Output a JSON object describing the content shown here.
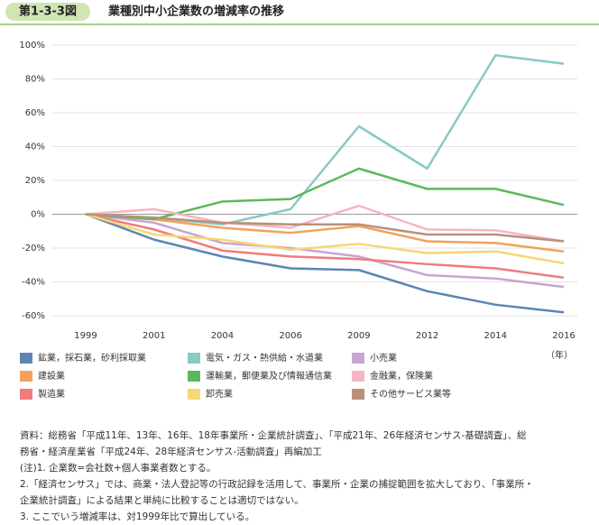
{
  "figure_label": "第1-3-3図",
  "chart_data": {
    "type": "line",
    "title": "業種別中小企業数の増減率の推移",
    "categories": [
      "1999",
      "2001",
      "2004",
      "2006",
      "2009",
      "2012",
      "2014",
      "2016"
    ],
    "x_unit": "（年）",
    "ylim": [
      -60,
      100
    ],
    "yticks": [
      {
        "value": -60,
        "label": "-60%"
      },
      {
        "value": -40,
        "label": "-40%"
      },
      {
        "value": -20,
        "label": "-20%"
      },
      {
        "value": 0,
        "label": "0%"
      },
      {
        "value": 20,
        "label": "20%"
      },
      {
        "value": 40,
        "label": "40%"
      },
      {
        "value": 60,
        "label": "60%"
      },
      {
        "value": 80,
        "label": "80%"
      },
      {
        "value": 100,
        "label": "100%"
      }
    ],
    "grid": true,
    "series": [
      {
        "name": "鉱業，採石業，砂利採取業",
        "color": "#5b86b3",
        "values": [
          0,
          -15,
          -25,
          -32,
          -33,
          -45.5,
          -53.5,
          -58
        ]
      },
      {
        "name": "電気・ガス・熱供給・水道業",
        "color": "#86cbc5",
        "values": [
          0,
          -2,
          -6,
          3,
          52,
          27,
          94,
          89
        ]
      },
      {
        "name": "小売業",
        "color": "#c8a5d2",
        "values": [
          0,
          -5,
          -17,
          -20,
          -25,
          -36,
          -38,
          -43
        ]
      },
      {
        "name": "建設業",
        "color": "#f2a25c",
        "values": [
          0,
          -3,
          -8,
          -11,
          -7,
          -16,
          -17,
          -22
        ]
      },
      {
        "name": "運輸業，郵便業及び情報通信業",
        "color": "#5cb85c",
        "values": [
          0,
          -3,
          7.5,
          9,
          27,
          15,
          15,
          5.5
        ]
      },
      {
        "name": "金融業，保険業",
        "color": "#f4b6c2",
        "values": [
          0,
          3,
          -5,
          -8,
          5,
          -9,
          -9.5,
          -16
        ]
      },
      {
        "name": "製造業",
        "color": "#ef7b7b",
        "values": [
          0,
          -9,
          -21.5,
          -25,
          -26.5,
          -29.5,
          -32,
          -37.5
        ]
      },
      {
        "name": "卸売業",
        "color": "#f7d774",
        "values": [
          0,
          -12,
          -15,
          -21,
          -17.5,
          -23,
          -22,
          -29
        ]
      },
      {
        "name": "その他サービス業等",
        "color": "#b9917a",
        "values": [
          0,
          -2,
          -5,
          -6,
          -6,
          -12,
          -12,
          -16
        ]
      }
    ]
  },
  "notes": [
    "資料：総務省「平成11年、13年、16年、18年事業所・企業統計調査」、「平成21年、26年経済センサス‐基礎調査」、総",
    "務省・経済産業省「平成24年、28年経済センサス‐活動調査」再編加工",
    "(注)1. 企業数=会社数+個人事業者数とする。",
    "2.「経済センサス」では、商業・法人登記等の行政記録を活用して、事業所・企業の捕捉範囲を拡大しており、「事業所・",
    "企業統計調査」による結果と単純に比較することは適切ではない。",
    "3. ここでいう増減率は、対1999年比で算出している。"
  ]
}
